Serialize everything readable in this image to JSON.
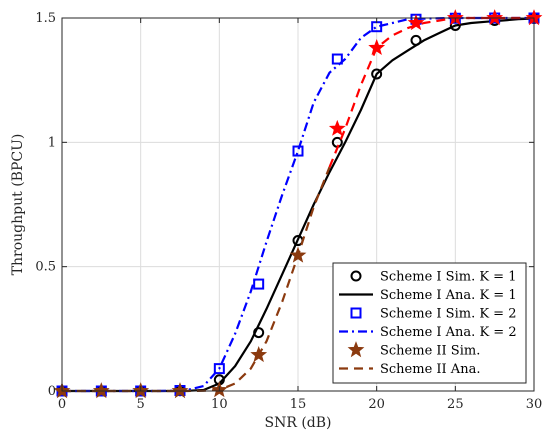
{
  "chart_data": {
    "type": "line",
    "xlabel": "SNR (dB)",
    "ylabel": "Throughput (BPCU)",
    "xlim": [
      0,
      30
    ],
    "ylim": [
      0,
      1.5
    ],
    "xticks": [
      0,
      5,
      10,
      15,
      20,
      25,
      30
    ],
    "xtick_labels": [
      "0",
      "5",
      "10",
      "15",
      "20",
      "25",
      "30"
    ],
    "yticks": [
      0,
      0.5,
      1,
      1.5
    ],
    "ytick_labels": [
      "0",
      "0.5",
      "1",
      "1.5"
    ],
    "grid": true,
    "legend_position": "bottom-right",
    "x_markers": [
      0,
      2.5,
      5,
      7.5,
      10,
      12.5,
      15,
      17.5,
      20,
      22.5,
      25,
      27.5,
      30
    ],
    "x_lines": [
      0,
      1,
      2,
      3,
      4,
      5,
      6,
      7,
      8,
      9,
      10,
      11,
      12,
      13,
      14,
      15,
      16,
      17,
      18,
      19,
      20,
      21,
      22,
      23,
      24,
      25,
      26,
      27,
      28,
      29,
      30
    ],
    "series": [
      {
        "name": "Scheme I Sim. K = 1",
        "style": "markers",
        "marker": "circle",
        "color": "#000000",
        "values": [
          0,
          0,
          0,
          0.001,
          0.045,
          0.235,
          0.605,
          1.0,
          1.275,
          1.41,
          1.47,
          1.49,
          1.498
        ]
      },
      {
        "name": "Scheme I Ana. K = 1",
        "style": "solid",
        "color": "#000000",
        "values": [
          0,
          0,
          0,
          0,
          0,
          0,
          0,
          0,
          0.001,
          0.004,
          0.03,
          0.1,
          0.2,
          0.33,
          0.47,
          0.61,
          0.75,
          0.88,
          1.0,
          1.13,
          1.275,
          1.33,
          1.37,
          1.41,
          1.44,
          1.47,
          1.48,
          1.485,
          1.49,
          1.495,
          1.498
        ]
      },
      {
        "name": "Scheme I Sim. K = 2",
        "style": "markers",
        "marker": "square",
        "color": "#0000ff",
        "values": [
          0,
          0,
          0,
          0.002,
          0.09,
          0.43,
          0.965,
          1.335,
          1.465,
          1.495,
          1.499,
          1.5,
          1.5
        ]
      },
      {
        "name": "Scheme I Ana. K = 2",
        "style": "dashdot",
        "color": "#0000ff",
        "values": [
          0,
          0,
          0,
          0,
          0,
          0,
          0,
          0.001,
          0.005,
          0.02,
          0.09,
          0.23,
          0.4,
          0.6,
          0.79,
          0.965,
          1.16,
          1.28,
          1.335,
          1.42,
          1.465,
          1.48,
          1.495,
          1.497,
          1.499,
          1.5,
          1.5,
          1.5,
          1.5,
          1.5,
          1.5
        ]
      },
      {
        "name": "Scheme II Sim.",
        "style": "markers",
        "marker": "star",
        "color": "#8b3a0f",
        "values": [
          0,
          0,
          0,
          0,
          0.004,
          0.145,
          0.545,
          null,
          null,
          null,
          null,
          null,
          null
        ]
      },
      {
        "name": "Scheme II Sim.",
        "style": "markers",
        "marker": "star",
        "color": "#ff0000",
        "values": [
          null,
          null,
          null,
          null,
          null,
          null,
          null,
          1.055,
          1.38,
          1.48,
          1.5,
          1.5,
          1.5
        ]
      },
      {
        "name": "Scheme II Ana.",
        "style": "dashed",
        "color": "#8b3a0f",
        "values": [
          0,
          0,
          0,
          0,
          0,
          0,
          0,
          0,
          0,
          0.001,
          0.004,
          0.03,
          0.09,
          0.2,
          0.36,
          0.545,
          0.74,
          0.9,
          null,
          null,
          null,
          null,
          null,
          null,
          null,
          null,
          null,
          null,
          null,
          null,
          null
        ]
      },
      {
        "name": "Scheme II Ana.",
        "style": "dashed",
        "color": "#ff0000",
        "values": [
          null,
          null,
          null,
          null,
          null,
          null,
          null,
          null,
          null,
          null,
          null,
          null,
          null,
          null,
          null,
          null,
          null,
          0.9,
          1.055,
          1.23,
          1.38,
          1.43,
          1.46,
          1.48,
          1.49,
          1.5,
          1.5,
          1.5,
          1.5,
          1.5,
          1.5
        ]
      }
    ],
    "legend": [
      {
        "label": "Scheme I Sim.  K = 1",
        "style": "markers",
        "marker": "circle",
        "color": "#000000"
      },
      {
        "label": "Scheme I Ana.  K = 1",
        "style": "solid",
        "color": "#000000"
      },
      {
        "label": "Scheme I Sim.  K = 2",
        "style": "markers",
        "marker": "square",
        "color": "#0000ff"
      },
      {
        "label": "Scheme I Ana.  K = 2",
        "style": "dashdot",
        "color": "#0000ff"
      },
      {
        "label": "Scheme II Sim.",
        "style": "markers",
        "marker": "star",
        "color": "#8b3a0f"
      },
      {
        "label": "Scheme II Ana.",
        "style": "dashed",
        "color": "#8b3a0f"
      }
    ]
  }
}
